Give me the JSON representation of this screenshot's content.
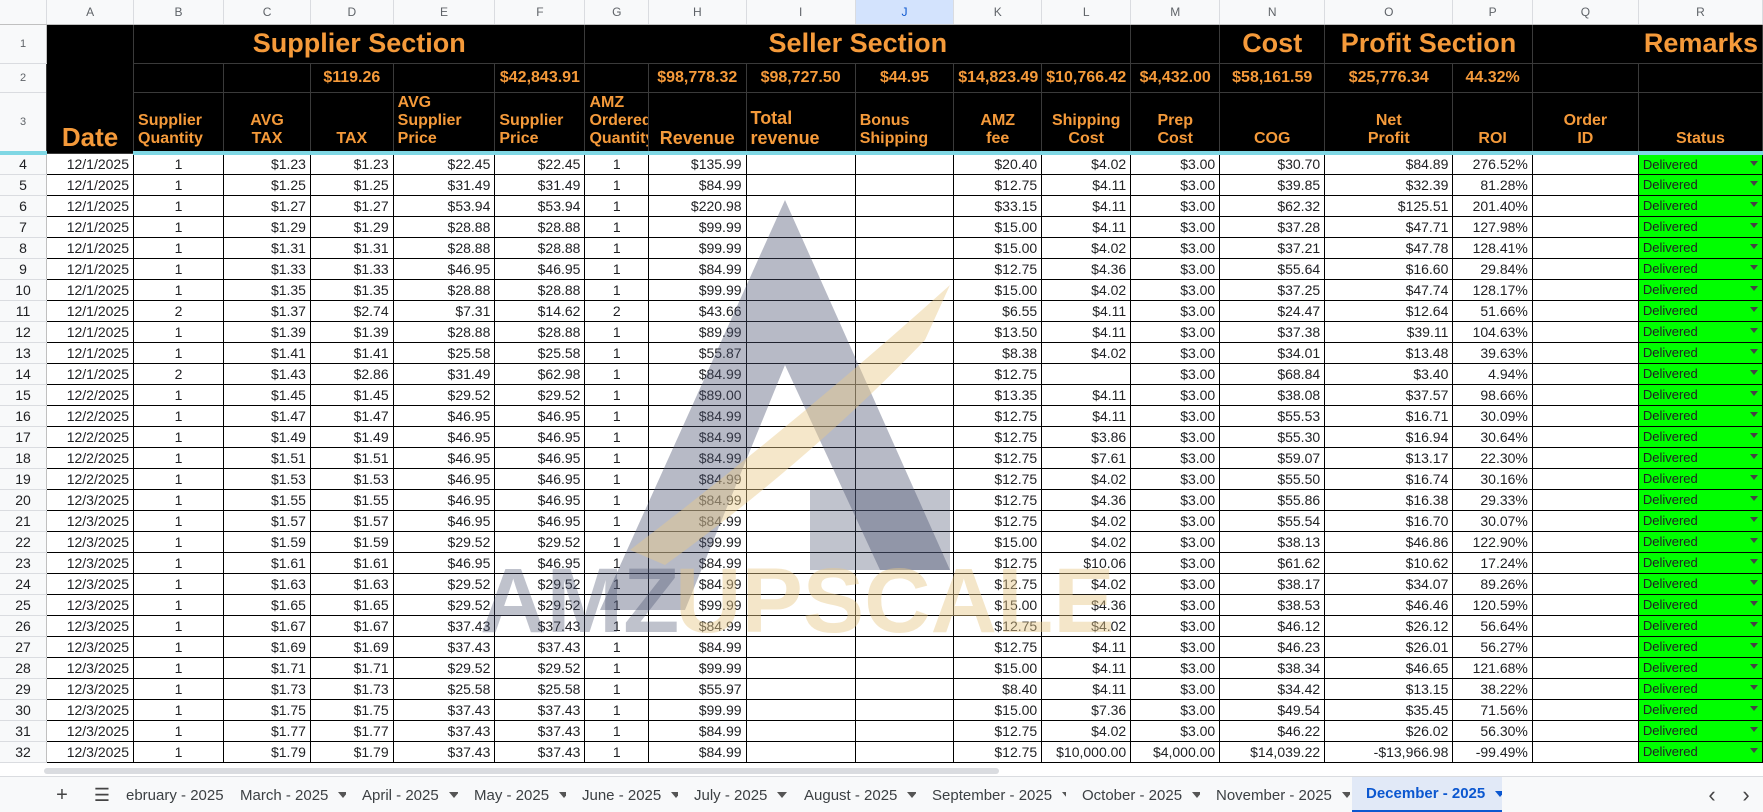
{
  "sheet": {
    "column_letters": [
      "A",
      "B",
      "C",
      "D",
      "E",
      "F",
      "G",
      "H",
      "I",
      "J",
      "K",
      "L",
      "M",
      "N",
      "O",
      "P",
      "Q",
      "R"
    ],
    "selected_column": "J",
    "sections": {
      "supplier": "Supplier Section",
      "seller": "Seller Section",
      "cost": "Cost",
      "profit": "Profit Section",
      "remarks": "Remarks"
    },
    "totals": {
      "tax": "$119.26",
      "supplier_price": "$42,843.91",
      "revenue": "$98,778.32",
      "total_revenue": "$98,727.50",
      "bonus_shipping": "$44.95",
      "amz_fee": "$14,823.49",
      "shipping_cost": "$10,766.42",
      "prep_cost": "$4,432.00",
      "cog": "$58,161.59",
      "net_profit": "$25,776.34",
      "roi": "44.32%"
    },
    "headers": {
      "date": "Date",
      "supplier_quantity": [
        "Supplier",
        "Quantity"
      ],
      "avg_tax": [
        "AVG",
        "TAX"
      ],
      "tax": "TAX",
      "avg_supplier_price": [
        "AVG",
        "Supplier",
        "Price"
      ],
      "supplier_price": [
        "Supplier",
        "Price"
      ],
      "amz_ordered_quantity": [
        "AMZ",
        "Ordered",
        "Quantity"
      ],
      "revenue": "Revenue",
      "total_revenue": [
        "Total",
        "revenue"
      ],
      "bonus_shipping": [
        "Bonus",
        "Shipping"
      ],
      "amz_fee": [
        "AMZ",
        "fee"
      ],
      "shipping_cost": [
        "Shipping",
        "Cost"
      ],
      "prep_cost": [
        "Prep",
        "Cost"
      ],
      "cog": "COG",
      "net_profit": [
        "Net",
        "Profit"
      ],
      "roi": "ROI",
      "order_id": [
        "Order",
        "ID"
      ],
      "status": "Status"
    },
    "rows": [
      {
        "n": "4",
        "date": "12/1/2025",
        "sq": "1",
        "avg_tax": "$1.23",
        "tax": "$1.23",
        "avg_sp": "$22.45",
        "sp": "$22.45",
        "oq": "1",
        "rev": "$135.99",
        "trev": "",
        "bonus": "",
        "fee": "$20.40",
        "ship": "$4.02",
        "prep": "$3.00",
        "cog": "$30.70",
        "net": "$84.89",
        "roi": "276.52%",
        "status": "Delivered"
      },
      {
        "n": "5",
        "date": "12/1/2025",
        "sq": "1",
        "avg_tax": "$1.25",
        "tax": "$1.25",
        "avg_sp": "$31.49",
        "sp": "$31.49",
        "oq": "1",
        "rev": "$84.99",
        "trev": "",
        "bonus": "",
        "fee": "$12.75",
        "ship": "$4.11",
        "prep": "$3.00",
        "cog": "$39.85",
        "net": "$32.39",
        "roi": "81.28%",
        "status": "Delivered"
      },
      {
        "n": "6",
        "date": "12/1/2025",
        "sq": "1",
        "avg_tax": "$1.27",
        "tax": "$1.27",
        "avg_sp": "$53.94",
        "sp": "$53.94",
        "oq": "1",
        "rev": "$220.98",
        "trev": "",
        "bonus": "",
        "fee": "$33.15",
        "ship": "$4.11",
        "prep": "$3.00",
        "cog": "$62.32",
        "net": "$125.51",
        "roi": "201.40%",
        "status": "Delivered"
      },
      {
        "n": "7",
        "date": "12/1/2025",
        "sq": "1",
        "avg_tax": "$1.29",
        "tax": "$1.29",
        "avg_sp": "$28.88",
        "sp": "$28.88",
        "oq": "1",
        "rev": "$99.99",
        "trev": "",
        "bonus": "",
        "fee": "$15.00",
        "ship": "$4.11",
        "prep": "$3.00",
        "cog": "$37.28",
        "net": "$47.71",
        "roi": "127.98%",
        "status": "Delivered"
      },
      {
        "n": "8",
        "date": "12/1/2025",
        "sq": "1",
        "avg_tax": "$1.31",
        "tax": "$1.31",
        "avg_sp": "$28.88",
        "sp": "$28.88",
        "oq": "1",
        "rev": "$99.99",
        "trev": "",
        "bonus": "",
        "fee": "$15.00",
        "ship": "$4.02",
        "prep": "$3.00",
        "cog": "$37.21",
        "net": "$47.78",
        "roi": "128.41%",
        "status": "Delivered"
      },
      {
        "n": "9",
        "date": "12/1/2025",
        "sq": "1",
        "avg_tax": "$1.33",
        "tax": "$1.33",
        "avg_sp": "$46.95",
        "sp": "$46.95",
        "oq": "1",
        "rev": "$84.99",
        "trev": "",
        "bonus": "",
        "fee": "$12.75",
        "ship": "$4.36",
        "prep": "$3.00",
        "cog": "$55.64",
        "net": "$16.60",
        "roi": "29.84%",
        "status": "Delivered"
      },
      {
        "n": "10",
        "date": "12/1/2025",
        "sq": "1",
        "avg_tax": "$1.35",
        "tax": "$1.35",
        "avg_sp": "$28.88",
        "sp": "$28.88",
        "oq": "1",
        "rev": "$99.99",
        "trev": "",
        "bonus": "",
        "fee": "$15.00",
        "ship": "$4.02",
        "prep": "$3.00",
        "cog": "$37.25",
        "net": "$47.74",
        "roi": "128.17%",
        "status": "Delivered"
      },
      {
        "n": "11",
        "date": "12/1/2025",
        "sq": "2",
        "avg_tax": "$1.37",
        "tax": "$2.74",
        "avg_sp": "$7.31",
        "sp": "$14.62",
        "oq": "2",
        "rev": "$43.66",
        "trev": "",
        "bonus": "",
        "fee": "$6.55",
        "ship": "$4.11",
        "prep": "$3.00",
        "cog": "$24.47",
        "net": "$12.64",
        "roi": "51.66%",
        "status": "Delivered"
      },
      {
        "n": "12",
        "date": "12/1/2025",
        "sq": "1",
        "avg_tax": "$1.39",
        "tax": "$1.39",
        "avg_sp": "$28.88",
        "sp": "$28.88",
        "oq": "1",
        "rev": "$89.99",
        "trev": "",
        "bonus": "",
        "fee": "$13.50",
        "ship": "$4.11",
        "prep": "$3.00",
        "cog": "$37.38",
        "net": "$39.11",
        "roi": "104.63%",
        "status": "Delivered"
      },
      {
        "n": "13",
        "date": "12/1/2025",
        "sq": "1",
        "avg_tax": "$1.41",
        "tax": "$1.41",
        "avg_sp": "$25.58",
        "sp": "$25.58",
        "oq": "1",
        "rev": "$55.87",
        "trev": "",
        "bonus": "",
        "fee": "$8.38",
        "ship": "$4.02",
        "prep": "$3.00",
        "cog": "$34.01",
        "net": "$13.48",
        "roi": "39.63%",
        "status": "Delivered"
      },
      {
        "n": "14",
        "date": "12/1/2025",
        "sq": "2",
        "avg_tax": "$1.43",
        "tax": "$2.86",
        "avg_sp": "$31.49",
        "sp": "$62.98",
        "oq": "1",
        "rev": "$84.99",
        "trev": "",
        "bonus": "",
        "fee": "$12.75",
        "ship": "",
        "prep": "$3.00",
        "cog": "$68.84",
        "net": "$3.40",
        "roi": "4.94%",
        "status": "Delivered"
      },
      {
        "n": "15",
        "date": "12/2/2025",
        "sq": "1",
        "avg_tax": "$1.45",
        "tax": "$1.45",
        "avg_sp": "$29.52",
        "sp": "$29.52",
        "oq": "1",
        "rev": "$89.00",
        "trev": "",
        "bonus": "",
        "fee": "$13.35",
        "ship": "$4.11",
        "prep": "$3.00",
        "cog": "$38.08",
        "net": "$37.57",
        "roi": "98.66%",
        "status": "Delivered"
      },
      {
        "n": "16",
        "date": "12/2/2025",
        "sq": "1",
        "avg_tax": "$1.47",
        "tax": "$1.47",
        "avg_sp": "$46.95",
        "sp": "$46.95",
        "oq": "1",
        "rev": "$84.99",
        "trev": "",
        "bonus": "",
        "fee": "$12.75",
        "ship": "$4.11",
        "prep": "$3.00",
        "cog": "$55.53",
        "net": "$16.71",
        "roi": "30.09%",
        "status": "Delivered"
      },
      {
        "n": "17",
        "date": "12/2/2025",
        "sq": "1",
        "avg_tax": "$1.49",
        "tax": "$1.49",
        "avg_sp": "$46.95",
        "sp": "$46.95",
        "oq": "1",
        "rev": "$84.99",
        "trev": "",
        "bonus": "",
        "fee": "$12.75",
        "ship": "$3.86",
        "prep": "$3.00",
        "cog": "$55.30",
        "net": "$16.94",
        "roi": "30.64%",
        "status": "Delivered"
      },
      {
        "n": "18",
        "date": "12/2/2025",
        "sq": "1",
        "avg_tax": "$1.51",
        "tax": "$1.51",
        "avg_sp": "$46.95",
        "sp": "$46.95",
        "oq": "1",
        "rev": "$84.99",
        "trev": "",
        "bonus": "",
        "fee": "$12.75",
        "ship": "$7.61",
        "prep": "$3.00",
        "cog": "$59.07",
        "net": "$13.17",
        "roi": "22.30%",
        "status": "Delivered"
      },
      {
        "n": "19",
        "date": "12/2/2025",
        "sq": "1",
        "avg_tax": "$1.53",
        "tax": "$1.53",
        "avg_sp": "$46.95",
        "sp": "$46.95",
        "oq": "1",
        "rev": "$84.99",
        "trev": "",
        "bonus": "",
        "fee": "$12.75",
        "ship": "$4.02",
        "prep": "$3.00",
        "cog": "$55.50",
        "net": "$16.74",
        "roi": "30.16%",
        "status": "Delivered"
      },
      {
        "n": "20",
        "date": "12/3/2025",
        "sq": "1",
        "avg_tax": "$1.55",
        "tax": "$1.55",
        "avg_sp": "$46.95",
        "sp": "$46.95",
        "oq": "1",
        "rev": "$84.99",
        "trev": "",
        "bonus": "",
        "fee": "$12.75",
        "ship": "$4.36",
        "prep": "$3.00",
        "cog": "$55.86",
        "net": "$16.38",
        "roi": "29.33%",
        "status": "Delivered"
      },
      {
        "n": "21",
        "date": "12/3/2025",
        "sq": "1",
        "avg_tax": "$1.57",
        "tax": "$1.57",
        "avg_sp": "$46.95",
        "sp": "$46.95",
        "oq": "1",
        "rev": "$84.99",
        "trev": "",
        "bonus": "",
        "fee": "$12.75",
        "ship": "$4.02",
        "prep": "$3.00",
        "cog": "$55.54",
        "net": "$16.70",
        "roi": "30.07%",
        "status": "Delivered"
      },
      {
        "n": "22",
        "date": "12/3/2025",
        "sq": "1",
        "avg_tax": "$1.59",
        "tax": "$1.59",
        "avg_sp": "$29.52",
        "sp": "$29.52",
        "oq": "1",
        "rev": "$99.99",
        "trev": "",
        "bonus": "",
        "fee": "$15.00",
        "ship": "$4.02",
        "prep": "$3.00",
        "cog": "$38.13",
        "net": "$46.86",
        "roi": "122.90%",
        "status": "Delivered"
      },
      {
        "n": "23",
        "date": "12/3/2025",
        "sq": "1",
        "avg_tax": "$1.61",
        "tax": "$1.61",
        "avg_sp": "$46.95",
        "sp": "$46.95",
        "oq": "1",
        "rev": "$84.99",
        "trev": "",
        "bonus": "",
        "fee": "$12.75",
        "ship": "$10.06",
        "prep": "$3.00",
        "cog": "$61.62",
        "net": "$10.62",
        "roi": "17.24%",
        "status": "Delivered"
      },
      {
        "n": "24",
        "date": "12/3/2025",
        "sq": "1",
        "avg_tax": "$1.63",
        "tax": "$1.63",
        "avg_sp": "$29.52",
        "sp": "$29.52",
        "oq": "1",
        "rev": "$84.99",
        "trev": "",
        "bonus": "",
        "fee": "$12.75",
        "ship": "$4.02",
        "prep": "$3.00",
        "cog": "$38.17",
        "net": "$34.07",
        "roi": "89.26%",
        "status": "Delivered"
      },
      {
        "n": "25",
        "date": "12/3/2025",
        "sq": "1",
        "avg_tax": "$1.65",
        "tax": "$1.65",
        "avg_sp": "$29.52",
        "sp": "$29.52",
        "oq": "1",
        "rev": "$99.99",
        "trev": "",
        "bonus": "",
        "fee": "$15.00",
        "ship": "$4.36",
        "prep": "$3.00",
        "cog": "$38.53",
        "net": "$46.46",
        "roi": "120.59%",
        "status": "Delivered"
      },
      {
        "n": "26",
        "date": "12/3/2025",
        "sq": "1",
        "avg_tax": "$1.67",
        "tax": "$1.67",
        "avg_sp": "$37.43",
        "sp": "$37.43",
        "oq": "1",
        "rev": "$84.99",
        "trev": "",
        "bonus": "",
        "fee": "$12.75",
        "ship": "$4.02",
        "prep": "$3.00",
        "cog": "$46.12",
        "net": "$26.12",
        "roi": "56.64%",
        "status": "Delivered"
      },
      {
        "n": "27",
        "date": "12/3/2025",
        "sq": "1",
        "avg_tax": "$1.69",
        "tax": "$1.69",
        "avg_sp": "$37.43",
        "sp": "$37.43",
        "oq": "1",
        "rev": "$84.99",
        "trev": "",
        "bonus": "",
        "fee": "$12.75",
        "ship": "$4.11",
        "prep": "$3.00",
        "cog": "$46.23",
        "net": "$26.01",
        "roi": "56.27%",
        "status": "Delivered"
      },
      {
        "n": "28",
        "date": "12/3/2025",
        "sq": "1",
        "avg_tax": "$1.71",
        "tax": "$1.71",
        "avg_sp": "$29.52",
        "sp": "$29.52",
        "oq": "1",
        "rev": "$99.99",
        "trev": "",
        "bonus": "",
        "fee": "$15.00",
        "ship": "$4.11",
        "prep": "$3.00",
        "cog": "$38.34",
        "net": "$46.65",
        "roi": "121.68%",
        "status": "Delivered"
      },
      {
        "n": "29",
        "date": "12/3/2025",
        "sq": "1",
        "avg_tax": "$1.73",
        "tax": "$1.73",
        "avg_sp": "$25.58",
        "sp": "$25.58",
        "oq": "1",
        "rev": "$55.97",
        "trev": "",
        "bonus": "",
        "fee": "$8.40",
        "ship": "$4.11",
        "prep": "$3.00",
        "cog": "$34.42",
        "net": "$13.15",
        "roi": "38.22%",
        "status": "Delivered"
      },
      {
        "n": "30",
        "date": "12/3/2025",
        "sq": "1",
        "avg_tax": "$1.75",
        "tax": "$1.75",
        "avg_sp": "$37.43",
        "sp": "$37.43",
        "oq": "1",
        "rev": "$99.99",
        "trev": "",
        "bonus": "",
        "fee": "$15.00",
        "ship": "$7.36",
        "prep": "$3.00",
        "cog": "$49.54",
        "net": "$35.45",
        "roi": "71.56%",
        "status": "Delivered"
      },
      {
        "n": "31",
        "date": "12/3/2025",
        "sq": "1",
        "avg_tax": "$1.77",
        "tax": "$1.77",
        "avg_sp": "$37.43",
        "sp": "$37.43",
        "oq": "1",
        "rev": "$84.99",
        "trev": "",
        "bonus": "",
        "fee": "$12.75",
        "ship": "$4.02",
        "prep": "$3.00",
        "cog": "$46.22",
        "net": "$26.02",
        "roi": "56.30%",
        "status": "Delivered"
      },
      {
        "n": "32",
        "date": "12/3/2025",
        "sq": "1",
        "avg_tax": "$1.79",
        "tax": "$1.79",
        "avg_sp": "$37.43",
        "sp": "$37.43",
        "oq": "1",
        "rev": "$84.99",
        "trev": "",
        "bonus": "",
        "fee": "$12.75",
        "ship": "$10,000.00",
        "prep": "$4,000.00",
        "cog": "$14,039.22",
        "net": "-$13,966.98",
        "roi": "-99.49%",
        "status": "Delivered"
      }
    ],
    "watermark": {
      "text_a": "AMZ",
      "text_b": "UPSCALE"
    }
  },
  "tabs": {
    "items": [
      "ebruary - 2025",
      "March - 2025",
      "April - 2025",
      "May - 2025",
      "June - 2025",
      "July - 2025",
      "August - 2025",
      "September - 2025",
      "October - 2025",
      "November - 2025",
      "December - 2025"
    ],
    "active_index": 10
  },
  "colors": {
    "header_bg": "#000000",
    "header_text": "#f59a3a",
    "status_green": "#00ff00",
    "active_tab": "#0b57d0",
    "freeze_line": "#7fd7e4"
  }
}
